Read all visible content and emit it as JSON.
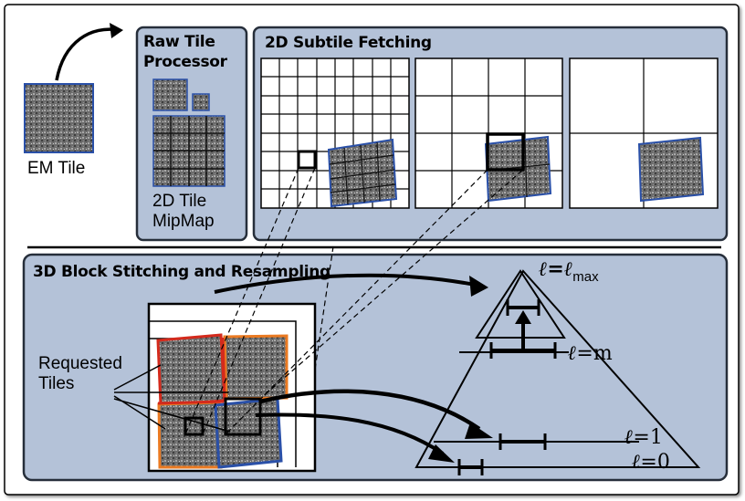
{
  "em_tile": {
    "label": "EM Tile"
  },
  "raw_tile_processor": {
    "title_line1": "Raw Tile",
    "title_line2": "Processor",
    "caption_line1": "2D Tile",
    "caption_line2": "MipMap"
  },
  "subtile_fetching": {
    "title": "2D Subtile Fetching"
  },
  "block_stitching": {
    "title": "3D Block Stitching and Resampling",
    "requested_line1": "Requested",
    "requested_line2": "Tiles"
  },
  "pyramid": {
    "level_symbol": "ℓ",
    "level_max_eq": "=ℓ",
    "level_max_sub": "max",
    "level_m": "=m",
    "level_1": "=1",
    "level_0": "=0"
  },
  "colors": {
    "panel_fill": "#b4c2d8",
    "panel_stroke": "#262e3a",
    "tile_fill": "#6c6c6c",
    "tile_blue": "#2a50a8",
    "tile_red": "#d42a1c",
    "tile_orange": "#ea7a22"
  }
}
